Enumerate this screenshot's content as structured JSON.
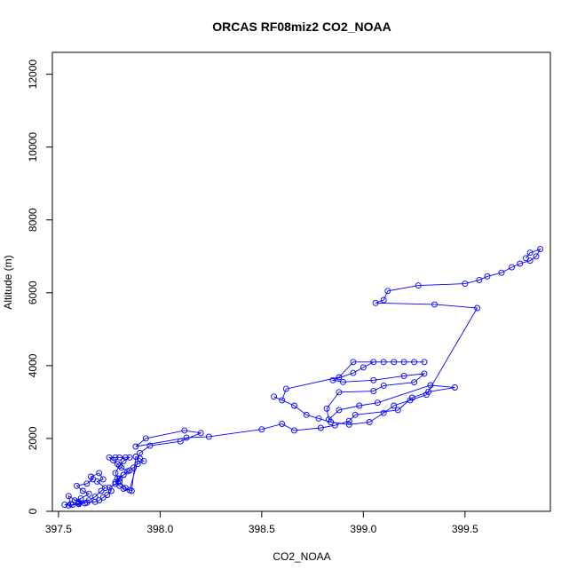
{
  "chart_data": {
    "type": "scatter",
    "title": "ORCAS RF08miz2 CO2_NOAA",
    "xlabel": "CO2_NOAA",
    "ylabel": "Altitude (m)",
    "xlim": [
      397.47,
      399.92
    ],
    "ylim": [
      0,
      12600
    ],
    "x_ticks": [
      "397.5",
      "398.0",
      "398.5",
      "399.0",
      "399.5"
    ],
    "x_tick_values": [
      397.5,
      398.0,
      398.5,
      399.0,
      399.5
    ],
    "y_ticks": [
      "0",
      "2000",
      "4000",
      "6000",
      "8000",
      "10000",
      "12000"
    ],
    "y_tick_values": [
      0,
      2000,
      4000,
      6000,
      8000,
      10000,
      12000
    ],
    "grid": false,
    "legend": "none",
    "marker": "open-circle",
    "series_color": "#0000ff",
    "series": [
      {
        "x": [
          397.53,
          397.56,
          397.55,
          397.6,
          397.63,
          397.58,
          397.61,
          397.65,
          397.62,
          397.59,
          397.64,
          397.67,
          397.66,
          397.7,
          397.72,
          397.69,
          397.73,
          397.71,
          397.68,
          397.65,
          397.6,
          397.57,
          397.55,
          397.6,
          397.64,
          397.68,
          397.7,
          397.72,
          397.74,
          397.76,
          397.75,
          397.78,
          397.8,
          397.79,
          397.82,
          397.84,
          397.81,
          397.79,
          397.77,
          397.75,
          397.78,
          397.8,
          397.83,
          397.85,
          397.82,
          397.8,
          397.78,
          397.8,
          397.83,
          397.86,
          397.88,
          397.9,
          397.92,
          397.89,
          397.87,
          397.85,
          397.82,
          397.8,
          397.78,
          397.8,
          397.82,
          397.85,
          397.9,
          397.95,
          398.1,
          398.2,
          398.12,
          397.93,
          397.88,
          398.13,
          398.24,
          398.5,
          398.6,
          398.66,
          398.79,
          398.86,
          398.93,
          398.96,
          399.17,
          399.24,
          399.32,
          399.45,
          399.33,
          399.07,
          398.98,
          398.88,
          398.83,
          398.82,
          398.88,
          399.05,
          399.1,
          399.25,
          399.3,
          399.2,
          399.05,
          398.9,
          398.85,
          398.95,
          399.0,
          399.05,
          399.1,
          399.15,
          399.2,
          399.25,
          399.3,
          398.95,
          398.88,
          398.62,
          398.6,
          398.56,
          398.66,
          398.72,
          398.78,
          398.84,
          398.93,
          399.03,
          399.1,
          399.15,
          399.23,
          399.31,
          399.56,
          399.35,
          399.06,
          399.1,
          399.12,
          399.27,
          399.5,
          399.57,
          399.61,
          399.68,
          399.73,
          399.77,
          399.82,
          399.85,
          399.87,
          399.82,
          399.8
        ],
        "y": [
          180,
          200,
          420,
          250,
          220,
          300,
          350,
          480,
          560,
          700,
          760,
          880,
          950,
          1050,
          880,
          820,
          640,
          560,
          400,
          300,
          220,
          180,
          160,
          200,
          240,
          260,
          300,
          380,
          450,
          560,
          650,
          750,
          820,
          900,
          1000,
          1100,
          1200,
          1300,
          1400,
          1480,
          1480,
          1480,
          1480,
          1480,
          1380,
          1250,
          1050,
          820,
          640,
          560,
          1500,
          1450,
          1380,
          1300,
          1200,
          1120,
          1000,
          900,
          800,
          700,
          620,
          580,
          1600,
          1800,
          1920,
          2150,
          2220,
          2000,
          1780,
          2020,
          2050,
          2250,
          2400,
          2220,
          2290,
          2360,
          2480,
          2650,
          2780,
          3120,
          3280,
          3400,
          3460,
          2980,
          2900,
          2780,
          2520,
          2820,
          3270,
          3300,
          3450,
          3540,
          3780,
          3720,
          3600,
          3550,
          3600,
          3800,
          3950,
          4100,
          4100,
          4100,
          4100,
          4100,
          4100,
          4100,
          3680,
          3360,
          3050,
          3150,
          2900,
          2650,
          2550,
          2450,
          2380,
          2450,
          2700,
          2900,
          3050,
          3200,
          5580,
          5680,
          5720,
          5800,
          6050,
          6200,
          6250,
          6350,
          6450,
          6550,
          6700,
          6800,
          6880,
          7000,
          7200,
          7100,
          6950
        ]
      }
    ]
  }
}
